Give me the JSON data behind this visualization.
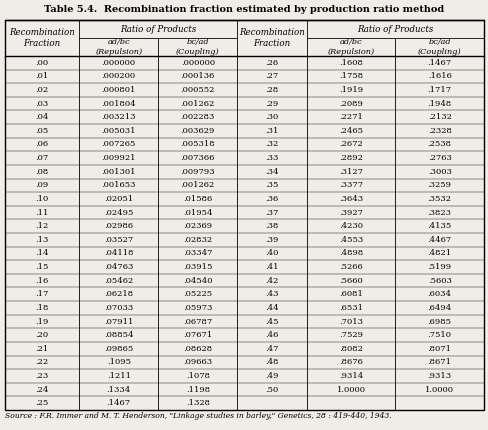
{
  "title": "Table 5.4.  Recombination fraction estimated by production ratio method",
  "source": "Source : F.R. Immer and M. T. Henderson, \"Linkage studies in barley,\" Genetics, 28 : 419-440, 1943.",
  "rows": [
    [
      ".00",
      ".000000",
      ".000000",
      ".26",
      ".1608",
      ".1467"
    ],
    [
      ".01",
      ".000200",
      ".000136",
      ".27",
      ".1758",
      ".1616"
    ],
    [
      ".02",
      ".000801",
      ".000552",
      ".28",
      ".1919",
      ".1717"
    ],
    [
      ".03",
      ".001804",
      ".001262",
      ".29",
      ".2089",
      ".1948"
    ],
    [
      ".04",
      ".003213",
      ".002283",
      ".30",
      ".2271",
      ".2132"
    ],
    [
      ".05",
      ".005031",
      ".003629",
      ".31",
      ".2465",
      ".2328"
    ],
    [
      ".06",
      ".007265",
      ".005318",
      ".32",
      ".2672",
      ".2538"
    ],
    [
      ".07",
      ".009921",
      ".007366",
      ".33",
      ".2892",
      ".2763"
    ],
    [
      ".08",
      ".001301",
      ".009793",
      ".34",
      ".3127",
      ".3003"
    ],
    [
      ".09",
      ".001653",
      ".001262",
      ".35",
      ".3377",
      ".3259"
    ],
    [
      ".10",
      ".02051",
      ".01586",
      ".36",
      ".3643",
      ".3532"
    ],
    [
      ".11",
      ".02495",
      ".01954",
      ".37",
      ".3927",
      ".3823"
    ],
    [
      ".12",
      ".02986",
      ".02369",
      ".38",
      ".4230",
      ".4135"
    ],
    [
      ".13",
      ".03527",
      ".02832",
      ".39",
      ".4553",
      ".4467"
    ],
    [
      ".14",
      ".04118",
      ".03347",
      ".40",
      ".4898",
      ".4821"
    ],
    [
      ".15",
      ".04763",
      ".03915",
      ".41",
      ".5266",
      ".5199"
    ],
    [
      ".16",
      ".05462",
      ".04540",
      ".42",
      ".5660",
      ".5603"
    ],
    [
      ".17",
      ".06218",
      ".05225",
      ".43",
      ".6081",
      ".6034"
    ],
    [
      ".18",
      ".07033",
      ".05973",
      ".44",
      ".6531",
      ".6494"
    ],
    [
      ".19",
      ".07911",
      ".06787",
      ".45",
      ".7013",
      ".6985"
    ],
    [
      ".20",
      ".08854",
      ".07671",
      ".46",
      ".7529",
      ".7510"
    ],
    [
      ".21",
      ".09865",
      ".08628",
      ".47",
      ".8082",
      ".8071"
    ],
    [
      ".22",
      ".1095",
      ".09663",
      ".48",
      ".8676",
      ".8671"
    ],
    [
      ".23",
      ".1211",
      ".1078",
      ".49",
      ".9314",
      ".9313"
    ],
    [
      ".24",
      ".1334",
      ".1198",
      ".50",
      "1.0000",
      "1.0000"
    ],
    [
      ".25",
      ".1467",
      ".1328",
      "",
      "",
      ""
    ]
  ],
  "bg_color": "#f0ede8",
  "title_fontsize": 7.0,
  "header_fontsize": 6.2,
  "data_fontsize": 6.0,
  "source_fontsize": 5.5
}
